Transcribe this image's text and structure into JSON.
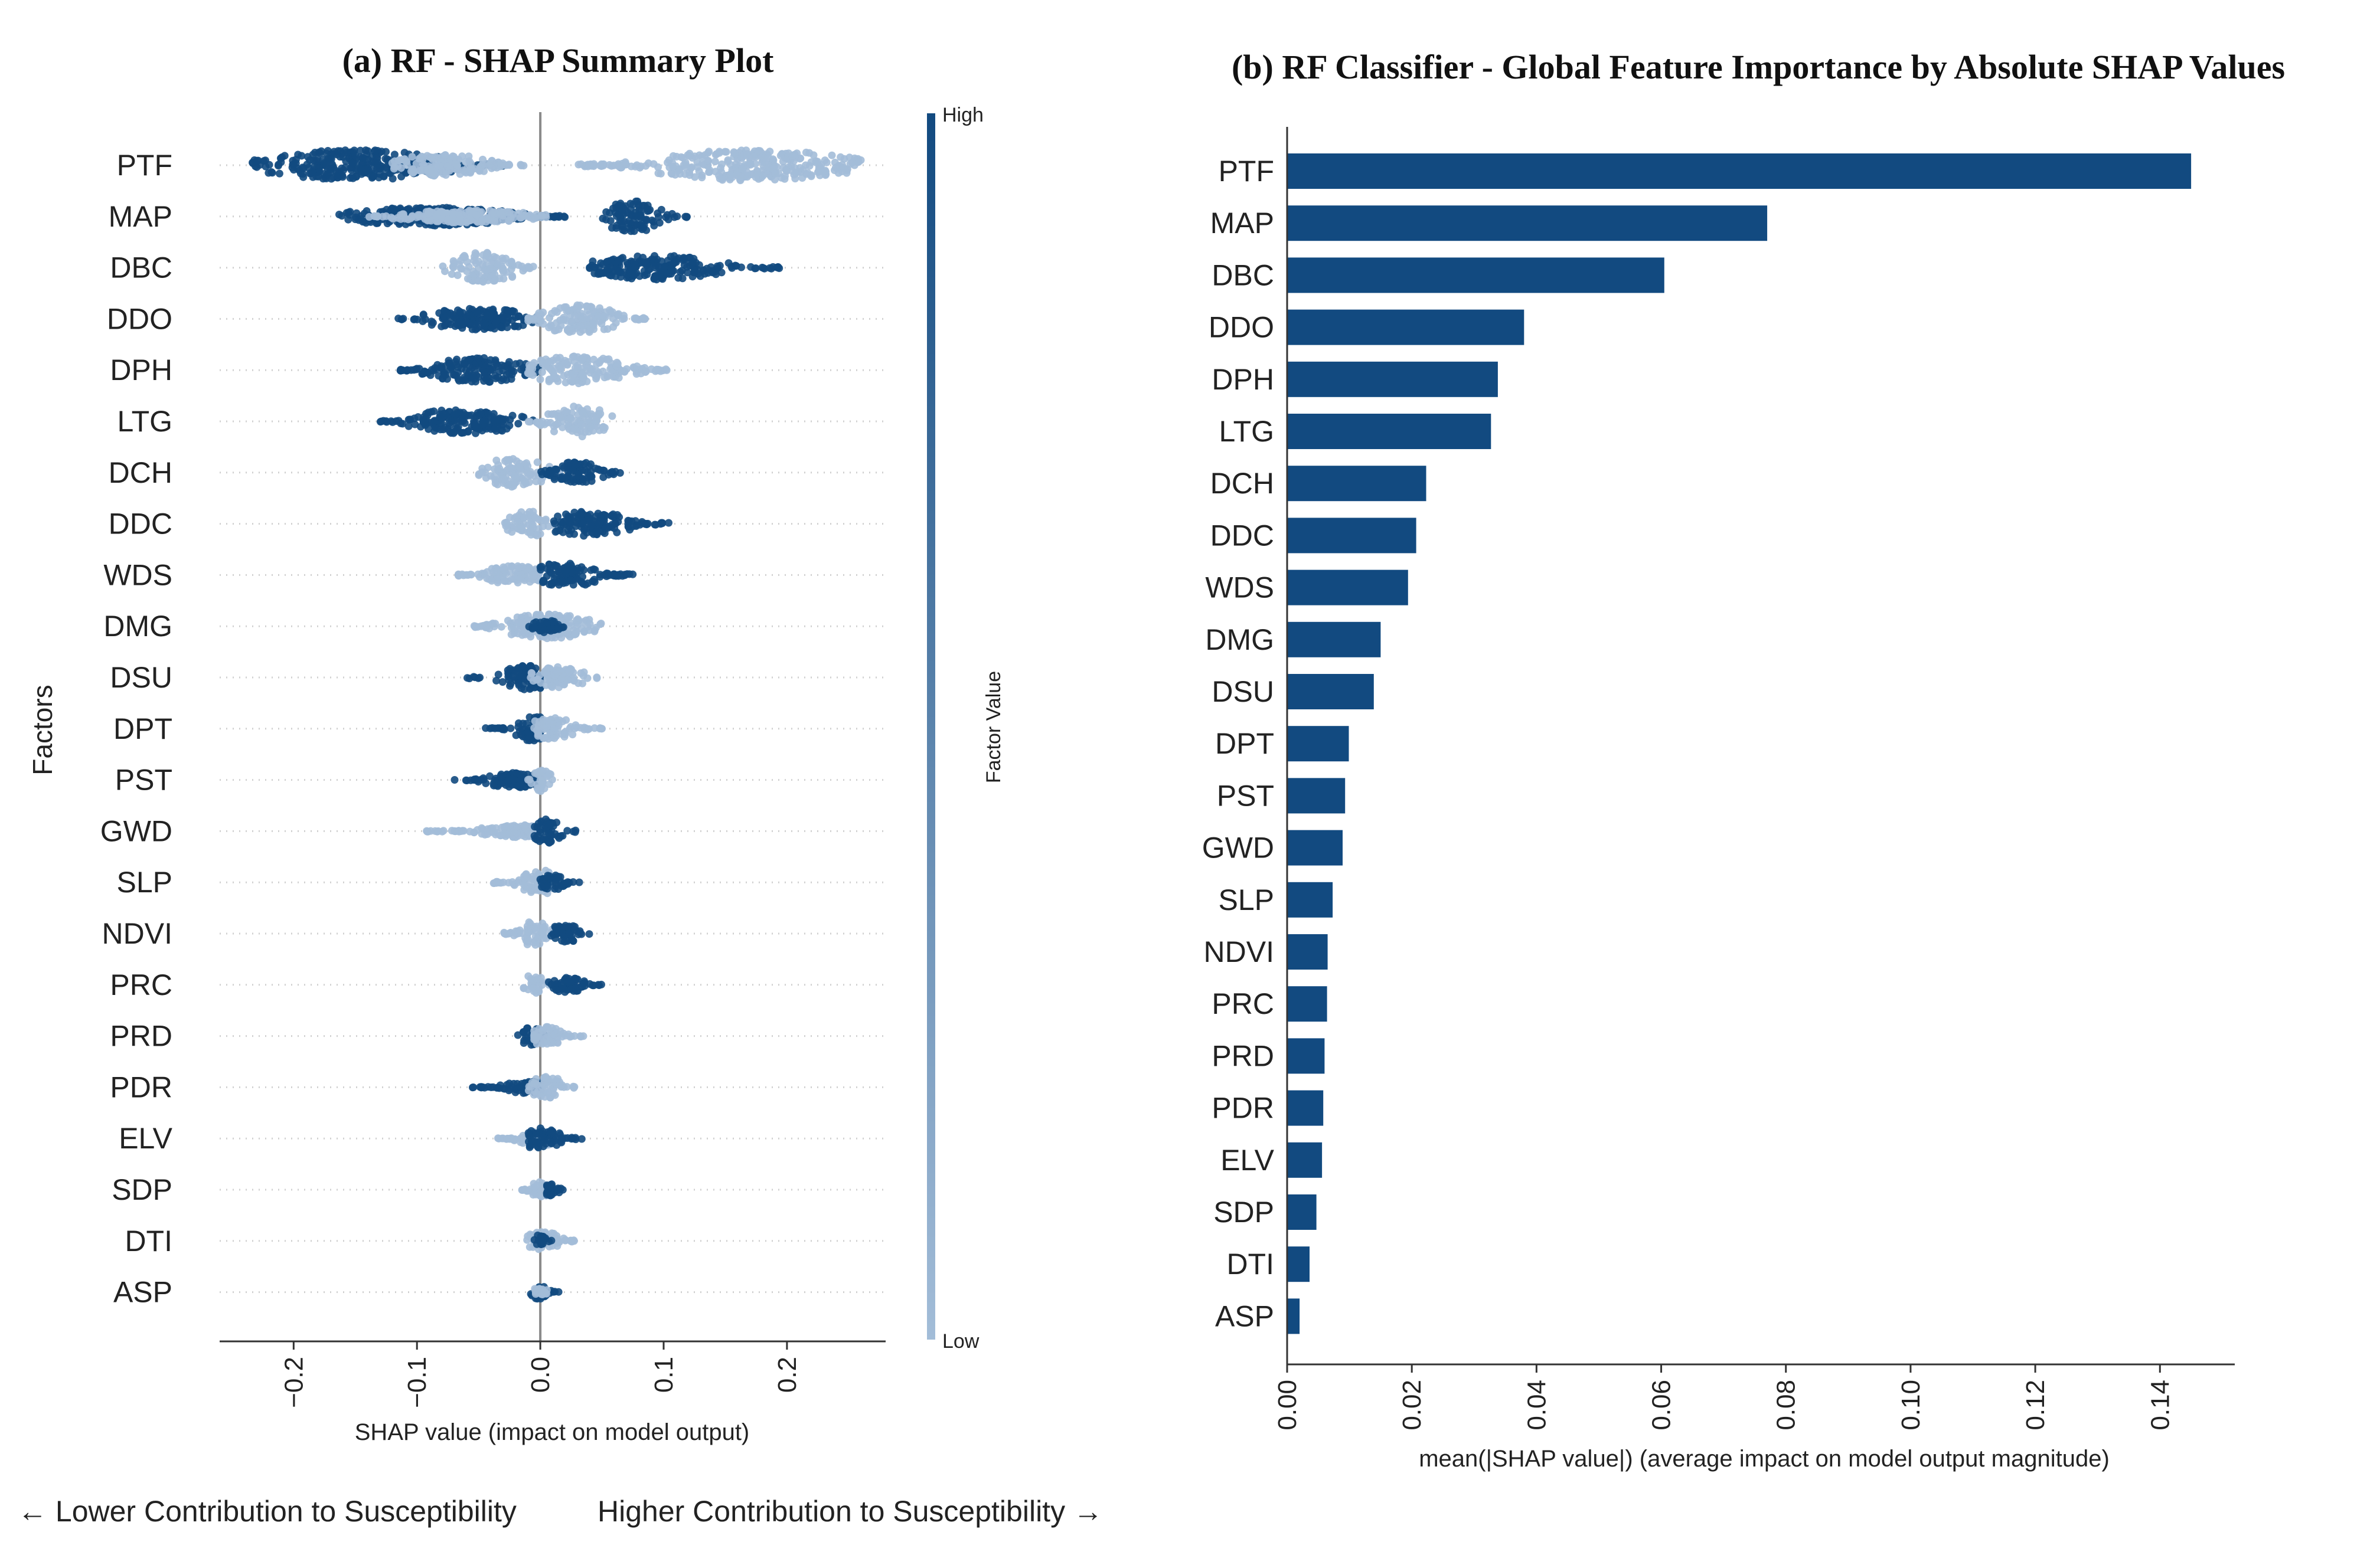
{
  "colors": {
    "high": "#124a80",
    "low": "#a3bdd8",
    "bar": "#124a80",
    "zero_line": "#8a8a8a",
    "grid_dots": "#cfcfcf"
  },
  "footer": {
    "left": "← Lower Contribution to Susceptibility",
    "right": "Higher Contribution to Susceptibility →"
  },
  "chart_data": [
    {
      "type": "scatter",
      "title": "(a) RF - SHAP Summary Plot",
      "xlabel": "SHAP value (impact on model output)",
      "ylabel": "Factors",
      "xlim": [
        -0.26,
        0.28
      ],
      "xticks": [
        -0.2,
        -0.1,
        0.0,
        0.1,
        0.2
      ],
      "xtick_labels": [
        "−0.2",
        "−0.1",
        "0.0",
        "0.1",
        "0.2"
      ],
      "grid": "dotted horizontal row guides",
      "colorbar": {
        "label": "Factor Value",
        "high_label": "High",
        "low_label": "Low"
      },
      "features": [
        "PTF",
        "MAP",
        "DBC",
        "DDO",
        "DPH",
        "LTG",
        "DCH",
        "DDC",
        "WDS",
        "DMG",
        "DSU",
        "DPT",
        "PST",
        "GWD",
        "SLP",
        "NDVI",
        "PRC",
        "PRD",
        "PDR",
        "ELV",
        "SDP",
        "DTI",
        "ASP"
      ],
      "series": [
        {
          "feature": "PTF",
          "clusters": [
            {
              "from": -0.235,
              "to": -0.03,
              "center": -0.15,
              "value": "high",
              "spread": 1.0
            },
            {
              "from": -0.12,
              "to": -0.01,
              "center": -0.08,
              "value": "low",
              "spread": 0.7
            },
            {
              "from": 0.03,
              "to": 0.26,
              "center": 0.17,
              "value": "low",
              "spread": 1.0
            }
          ]
        },
        {
          "feature": "MAP",
          "clusters": [
            {
              "from": -0.165,
              "to": 0.02,
              "center": -0.09,
              "value": "high",
              "spread": 0.6
            },
            {
              "from": -0.14,
              "to": 0.01,
              "center": -0.06,
              "value": "low",
              "spread": 0.4
            },
            {
              "from": 0.05,
              "to": 0.12,
              "center": 0.075,
              "value": "high",
              "spread": 1.0
            }
          ]
        },
        {
          "feature": "DBC",
          "clusters": [
            {
              "from": -0.08,
              "to": -0.005,
              "center": -0.045,
              "value": "low",
              "spread": 1.0
            },
            {
              "from": 0.04,
              "to": 0.195,
              "center": 0.095,
              "value": "high",
              "spread": 0.8
            }
          ]
        },
        {
          "feature": "DDO",
          "clusters": [
            {
              "from": -0.12,
              "to": 0.0,
              "center": -0.05,
              "value": "high",
              "spread": 0.7
            },
            {
              "from": -0.01,
              "to": 0.085,
              "center": 0.03,
              "value": "low",
              "spread": 0.9
            }
          ]
        },
        {
          "feature": "DPH",
          "clusters": [
            {
              "from": -0.115,
              "to": 0.0,
              "center": -0.05,
              "value": "high",
              "spread": 0.8
            },
            {
              "from": -0.01,
              "to": 0.11,
              "center": 0.03,
              "value": "low",
              "spread": 0.9
            }
          ]
        },
        {
          "feature": "LTG",
          "clusters": [
            {
              "from": -0.13,
              "to": -0.005,
              "center": -0.06,
              "value": "high",
              "spread": 0.8
            },
            {
              "from": -0.01,
              "to": 0.06,
              "center": 0.03,
              "value": "low",
              "spread": 1.0
            }
          ]
        },
        {
          "feature": "DCH",
          "clusters": [
            {
              "from": -0.05,
              "to": 0.02,
              "center": -0.02,
              "value": "low",
              "spread": 1.0
            },
            {
              "from": 0.0,
              "to": 0.065,
              "center": 0.03,
              "value": "high",
              "spread": 0.7
            }
          ]
        },
        {
          "feature": "DDC",
          "clusters": [
            {
              "from": -0.03,
              "to": 0.015,
              "center": -0.01,
              "value": "low",
              "spread": 0.9
            },
            {
              "from": 0.01,
              "to": 0.105,
              "center": 0.04,
              "value": "high",
              "spread": 0.8
            }
          ]
        },
        {
          "feature": "WDS",
          "clusters": [
            {
              "from": -0.07,
              "to": 0.0,
              "center": -0.02,
              "value": "low",
              "spread": 0.6
            },
            {
              "from": 0.0,
              "to": 0.075,
              "center": 0.02,
              "value": "high",
              "spread": 0.8
            }
          ]
        },
        {
          "feature": "DMG",
          "clusters": [
            {
              "from": -0.055,
              "to": 0.05,
              "center": 0.005,
              "value": "low",
              "spread": 0.8
            },
            {
              "from": -0.01,
              "to": 0.02,
              "center": 0.005,
              "value": "high",
              "spread": 0.4
            }
          ]
        },
        {
          "feature": "DSU",
          "clusters": [
            {
              "from": -0.06,
              "to": 0.0,
              "center": -0.01,
              "value": "high",
              "spread": 0.8
            },
            {
              "from": -0.01,
              "to": 0.05,
              "center": 0.015,
              "value": "low",
              "spread": 0.7
            }
          ]
        },
        {
          "feature": "DPT",
          "clusters": [
            {
              "from": -0.045,
              "to": 0.0,
              "center": -0.005,
              "value": "high",
              "spread": 0.8
            },
            {
              "from": -0.005,
              "to": 0.05,
              "center": 0.01,
              "value": "low",
              "spread": 0.7
            }
          ]
        },
        {
          "feature": "PST",
          "clusters": [
            {
              "from": -0.07,
              "to": 0.0,
              "center": -0.02,
              "value": "high",
              "spread": 0.5
            },
            {
              "from": -0.01,
              "to": 0.012,
              "center": 0.002,
              "value": "low",
              "spread": 0.8
            }
          ]
        },
        {
          "feature": "GWD",
          "clusters": [
            {
              "from": -0.095,
              "to": 0.0,
              "center": -0.015,
              "value": "low",
              "spread": 0.4
            },
            {
              "from": -0.005,
              "to": 0.03,
              "center": 0.005,
              "value": "high",
              "spread": 0.8
            }
          ]
        },
        {
          "feature": "SLP",
          "clusters": [
            {
              "from": -0.04,
              "to": 0.01,
              "center": 0.0,
              "value": "low",
              "spread": 0.8
            },
            {
              "from": 0.0,
              "to": 0.035,
              "center": 0.01,
              "value": "high",
              "spread": 0.5
            }
          ]
        },
        {
          "feature": "NDVI",
          "clusters": [
            {
              "from": -0.03,
              "to": 0.01,
              "center": -0.005,
              "value": "low",
              "spread": 0.8
            },
            {
              "from": 0.005,
              "to": 0.04,
              "center": 0.02,
              "value": "high",
              "spread": 0.6
            }
          ]
        },
        {
          "feature": "PRC",
          "clusters": [
            {
              "from": -0.015,
              "to": 0.01,
              "center": -0.005,
              "value": "low",
              "spread": 0.7
            },
            {
              "from": 0.005,
              "to": 0.05,
              "center": 0.02,
              "value": "high",
              "spread": 0.5
            }
          ]
        },
        {
          "feature": "PRD",
          "clusters": [
            {
              "from": -0.02,
              "to": 0.005,
              "center": -0.008,
              "value": "high",
              "spread": 0.6
            },
            {
              "from": -0.005,
              "to": 0.035,
              "center": 0.005,
              "value": "low",
              "spread": 0.6
            }
          ]
        },
        {
          "feature": "PDR",
          "clusters": [
            {
              "from": -0.055,
              "to": 0.0,
              "center": -0.01,
              "value": "high",
              "spread": 0.4
            },
            {
              "from": -0.01,
              "to": 0.03,
              "center": 0.005,
              "value": "low",
              "spread": 0.7
            }
          ]
        },
        {
          "feature": "ELV",
          "clusters": [
            {
              "from": -0.035,
              "to": 0.01,
              "center": -0.002,
              "value": "low",
              "spread": 0.5
            },
            {
              "from": -0.01,
              "to": 0.035,
              "center": 0.0,
              "value": "high",
              "spread": 0.7
            }
          ]
        },
        {
          "feature": "SDP",
          "clusters": [
            {
              "from": -0.015,
              "to": 0.01,
              "center": 0.0,
              "value": "low",
              "spread": 0.5
            },
            {
              "from": 0.0,
              "to": 0.02,
              "center": 0.008,
              "value": "high",
              "spread": 0.4
            }
          ]
        },
        {
          "feature": "DTI",
          "clusters": [
            {
              "from": -0.012,
              "to": 0.03,
              "center": 0.002,
              "value": "low",
              "spread": 0.6
            },
            {
              "from": -0.005,
              "to": 0.01,
              "center": 0.0,
              "value": "high",
              "spread": 0.4
            }
          ]
        },
        {
          "feature": "ASP",
          "clusters": [
            {
              "from": -0.008,
              "to": 0.015,
              "center": 0.0,
              "value": "high",
              "spread": 0.5
            },
            {
              "from": -0.008,
              "to": 0.01,
              "center": 0.0,
              "value": "low",
              "spread": 0.3
            }
          ]
        }
      ]
    },
    {
      "type": "bar",
      "orientation": "horizontal",
      "title": "(b) RF Classifier - Global Feature Importance by Absolute SHAP Values",
      "xlabel": "mean(|SHAP value|) (average impact on model output magnitude)",
      "ylabel": "",
      "xlim": [
        0,
        0.152
      ],
      "xticks": [
        0.0,
        0.02,
        0.04,
        0.06,
        0.08,
        0.1,
        0.12,
        0.14
      ],
      "xtick_labels": [
        "0.00",
        "0.02",
        "0.04",
        "0.06",
        "0.08",
        "0.10",
        "0.12",
        "0.14"
      ],
      "categories": [
        "PTF",
        "MAP",
        "DBC",
        "DDO",
        "DPH",
        "LTG",
        "DCH",
        "DDC",
        "WDS",
        "DMG",
        "DSU",
        "DPT",
        "PST",
        "GWD",
        "SLP",
        "NDVI",
        "PRC",
        "PRD",
        "PDR",
        "ELV",
        "SDP",
        "DTI",
        "ASP"
      ],
      "values": [
        0.145,
        0.077,
        0.0605,
        0.038,
        0.0338,
        0.0327,
        0.0223,
        0.0207,
        0.0194,
        0.015,
        0.0139,
        0.0099,
        0.0093,
        0.0089,
        0.0073,
        0.0065,
        0.0064,
        0.006,
        0.0058,
        0.0056,
        0.0047,
        0.0036,
        0.002
      ]
    }
  ]
}
